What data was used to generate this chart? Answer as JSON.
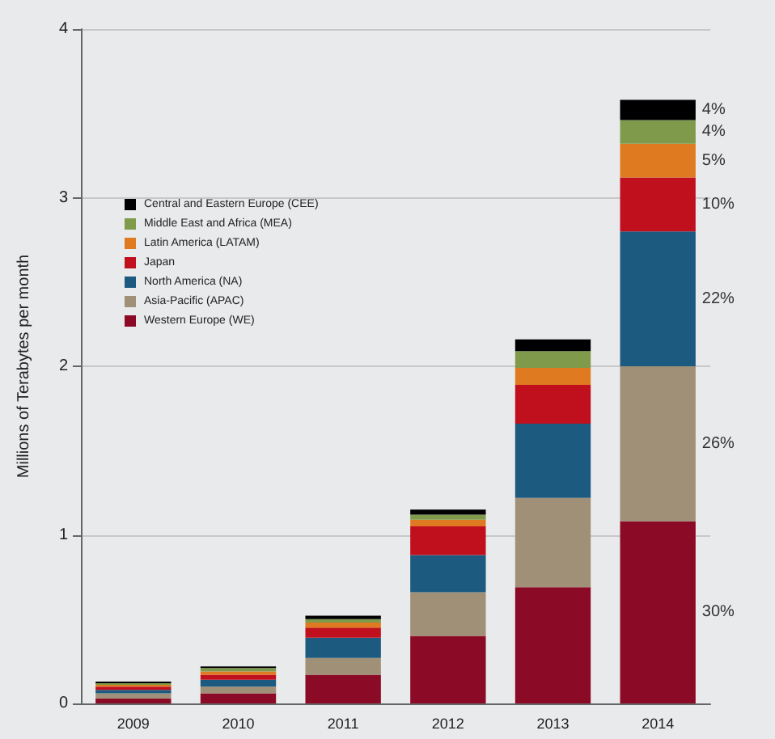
{
  "chart_data": {
    "type": "bar",
    "stacked": true,
    "ylabel": "Millions of Terabytes per month",
    "categories": [
      "2009",
      "2010",
      "2011",
      "2012",
      "2013",
      "2014"
    ],
    "ylim": [
      0,
      4
    ],
    "yticks": [
      0,
      1,
      2,
      3,
      4
    ],
    "grid": "y",
    "legend": "top left",
    "series": [
      {
        "name": "Western Europe (WE)",
        "color": "#8b0a25",
        "values": [
          0.03,
          0.06,
          0.17,
          0.4,
          0.69,
          1.08
        ]
      },
      {
        "name": "Asia-Pacific (APAC)",
        "color": "#a09077",
        "values": [
          0.03,
          0.04,
          0.1,
          0.26,
          0.53,
          0.92
        ]
      },
      {
        "name": "North America (NA)",
        "color": "#1d5a80",
        "values": [
          0.02,
          0.04,
          0.12,
          0.22,
          0.44,
          0.8
        ]
      },
      {
        "name": "Japan",
        "color": "#c0101e",
        "values": [
          0.02,
          0.03,
          0.06,
          0.17,
          0.23,
          0.32
        ]
      },
      {
        "name": "Latin America (LATAM)",
        "color": "#e07a20",
        "values": [
          0.01,
          0.02,
          0.03,
          0.04,
          0.1,
          0.2
        ]
      },
      {
        "name": "Middle East and Africa (MEA)",
        "color": "#7f9a4a",
        "values": [
          0.01,
          0.02,
          0.02,
          0.03,
          0.1,
          0.14
        ]
      },
      {
        "name": "Central and Eastern Europe (CEE)",
        "color": "#000000",
        "values": [
          0.01,
          0.01,
          0.02,
          0.03,
          0.07,
          0.12
        ]
      }
    ],
    "annotations": [
      "30%",
      "26%",
      "22%",
      "10%",
      "5%",
      "4%",
      "4%"
    ]
  }
}
